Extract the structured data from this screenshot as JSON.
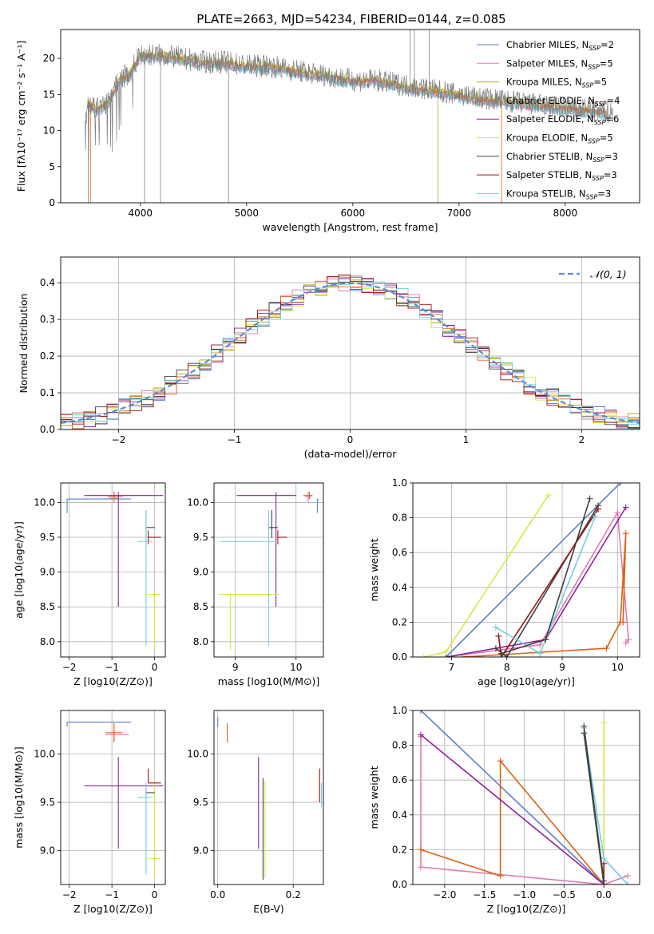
{
  "figure_title": "PLATE=2663, MJD=54234, FIBERID=0144, z=0.085",
  "colors": {
    "chabrier_miles": "#5b7fd0",
    "salpeter_miles": "#e07ab0",
    "kroupa_miles": "#b8a020",
    "chabrier_elodie": "#e06010",
    "salpeter_elodie": "#9020a0",
    "kroupa_elodie": "#d8e840",
    "chabrier_stelib": "#404040",
    "salpeter_stelib": "#a01010",
    "kroupa_stelib": "#70d0e0",
    "data": "#808080",
    "normal": "#5b8bd8"
  },
  "chart_data": [
    {
      "id": "spectrum",
      "type": "line",
      "xlabel": "wavelength [Angstrom, rest frame]",
      "ylabel": "Flux [fλ10⁻¹⁷ erg cm⁻² s⁻¹ A⁻¹]",
      "xlim": [
        3250,
        8700
      ],
      "ylim": [
        0,
        24
      ],
      "xticks": [
        4000,
        5000,
        6000,
        7000,
        8000
      ],
      "yticks": [
        0,
        5,
        10,
        15,
        20
      ],
      "legend_placement": "right",
      "legend": [
        "Chabrier MILES, N_SSP=2",
        "Salpeter MILES, N_SSP=5",
        "Kroupa MILES, N_SSP=5",
        "Chabrier ELODIE, N_SSP=4",
        "Salpeter ELODIE, N_SSP=6",
        "Kroupa ELODIE, N_SSP=5",
        "Chabrier STELIB, N_SSP=3",
        "Salpeter STELIB, N_SSP=3",
        "Kroupa STELIB, N_SSP=3"
      ],
      "continuum": {
        "x": [
          3500,
          3600,
          3700,
          3800,
          3900,
          4000,
          4200,
          4400,
          4600,
          4800,
          5000,
          5200,
          5400,
          5600,
          5800,
          6000,
          6200,
          6400,
          6600,
          6800,
          7000,
          7200,
          7400,
          7600,
          7800,
          8000,
          8200,
          8400
        ],
        "y": [
          14,
          13,
          14,
          17,
          18,
          20.5,
          20.5,
          20,
          19.5,
          19.5,
          19,
          19,
          18.5,
          18,
          17.5,
          17,
          17,
          16.5,
          16,
          15.5,
          15,
          14.5,
          14.2,
          13.8,
          13.5,
          13.2,
          12.9,
          12.6
        ]
      }
    },
    {
      "id": "residuals",
      "type": "histogram",
      "xlabel": "(data-model)/error",
      "ylabel": "Normed distribution",
      "xlim": [
        -2.5,
        2.5
      ],
      "ylim": [
        0,
        0.47
      ],
      "xticks": [
        -2,
        -1,
        0,
        1,
        2
      ],
      "yticks": [
        0.0,
        0.1,
        0.2,
        0.3,
        0.4
      ],
      "grid": true,
      "legend_placement": "top-right",
      "legend": [
        "𝒩(0, 1)"
      ],
      "bin_width": 0.1
    },
    {
      "id": "age_vs_Z",
      "type": "scatter",
      "xlabel": "Z [log10(Z/Z⊙)]",
      "ylabel": "age  [log10(age/yr)]",
      "xlim": [
        -2.2,
        0.25
      ],
      "ylim": [
        7.78,
        10.28
      ],
      "xticks": [
        -2,
        -1,
        0
      ],
      "yticks": [
        8.0,
        8.5,
        9.0,
        9.5,
        10.0
      ],
      "grid": true,
      "points": [
        {
          "color": "chabrier_miles",
          "x": -2.05,
          "y": 10.05,
          "x_err": [
            0,
            1.5
          ],
          "y_err": [
            0.2,
            0
          ]
        },
        {
          "color": "salpeter_miles",
          "x": -0.95,
          "y": 10.08,
          "x_err": [
            0.15,
            0.2
          ],
          "y_err": [
            0.08,
            0.08
          ]
        },
        {
          "color": "kroupa_miles",
          "x": -0.95,
          "y": 10.06,
          "x_err": [
            0.1,
            0.1
          ],
          "y_err": [
            0.05,
            0.05
          ]
        },
        {
          "color": "chabrier_elodie",
          "x": -0.95,
          "y": 10.1,
          "x_err": [
            0.15,
            0.15
          ],
          "y_err": [
            0.05,
            0.05
          ]
        },
        {
          "color": "salpeter_elodie",
          "x": -0.85,
          "y": 10.1,
          "x_err": [
            0.8,
            1.05
          ],
          "y_err": [
            1.6,
            0.05
          ]
        },
        {
          "color": "kroupa_elodie",
          "x": 0.0,
          "y": 8.68,
          "x_err": [
            0.15,
            0.15
          ],
          "y_err": [
            0.8,
            0.0
          ]
        },
        {
          "color": "chabrier_stelib",
          "x": -0.2,
          "y": 9.64,
          "x_err": [
            0.0,
            0.2
          ],
          "y_err": [
            0.15,
            0.25
          ]
        },
        {
          "color": "salpeter_stelib",
          "x": -0.15,
          "y": 9.5,
          "x_err": [
            0,
            0.3
          ],
          "y_err": [
            0.1,
            0.1
          ]
        },
        {
          "color": "kroupa_stelib",
          "x": -0.2,
          "y": 9.44,
          "x_err": [
            0.2,
            0.15
          ],
          "y_err": [
            1.5,
            0.45
          ]
        }
      ]
    },
    {
      "id": "age_vs_mass",
      "type": "scatter",
      "xlabel": "mass [log10(M/M⊙)]",
      "ylabel": "",
      "xlim": [
        8.65,
        10.45
      ],
      "ylim": [
        7.78,
        10.28
      ],
      "xticks": [
        9,
        10
      ],
      "yticks": [
        8.0,
        8.5,
        9.0,
        9.5,
        10.0
      ],
      "grid": true,
      "points": [
        {
          "color": "chabrier_miles",
          "x": 10.35,
          "y": 10.05,
          "x_err": [
            0,
            0.02
          ],
          "y_err": [
            0.2,
            0
          ]
        },
        {
          "color": "salpeter_miles",
          "x": 10.2,
          "y": 10.08,
          "x_err": [
            0.05,
            0.05
          ],
          "y_err": [
            0.08,
            0.08
          ]
        },
        {
          "color": "chabrier_elodie",
          "x": 10.22,
          "y": 10.1,
          "x_err": [
            0.1,
            0.05
          ],
          "y_err": [
            0.05,
            0.05
          ]
        },
        {
          "color": "salpeter_elodie",
          "x": 9.67,
          "y": 10.1,
          "x_err": [
            0.65,
            0.33
          ],
          "y_err": [
            1.6,
            0.05
          ]
        },
        {
          "color": "kroupa_elodie",
          "x": 8.92,
          "y": 8.68,
          "x_err": [
            0.2,
            0.8
          ],
          "y_err": [
            0.8,
            0
          ]
        },
        {
          "color": "chabrier_stelib",
          "x": 9.6,
          "y": 9.64,
          "x_err": [
            0.05,
            0.1
          ],
          "y_err": [
            0.15,
            0.25
          ]
        },
        {
          "color": "salpeter_stelib",
          "x": 9.7,
          "y": 9.5,
          "x_err": [
            0,
            0.15
          ],
          "y_err": [
            0.1,
            0.1
          ]
        },
        {
          "color": "kroupa_stelib",
          "x": 9.55,
          "y": 9.44,
          "x_err": [
            0.8,
            0.15
          ],
          "y_err": [
            1.5,
            0.45
          ]
        }
      ]
    },
    {
      "id": "weight_vs_age",
      "type": "line",
      "xlabel": "age  [log10(age/yr)]",
      "ylabel": "mass weight",
      "xlim": [
        6.3,
        10.4
      ],
      "ylim": [
        0,
        1
      ],
      "xticks": [
        7,
        8,
        9,
        10
      ],
      "yticks": [
        0.0,
        0.2,
        0.4,
        0.6,
        0.8,
        1.0
      ],
      "grid": true,
      "series": [
        {
          "color": "chabrier_miles",
          "x": [
            6.9,
            10.05
          ],
          "y": [
            0.0,
            1.0
          ]
        },
        {
          "color": "salpeter_miles",
          "x": [
            6.9,
            8.6,
            10.0,
            10.2,
            10.15
          ],
          "y": [
            0.0,
            0.07,
            0.83,
            0.1,
            0.08
          ]
        },
        {
          "color": "chabrier_elodie",
          "x": [
            7.2,
            9.8,
            10.05,
            10.15,
            10.1
          ],
          "y": [
            0.0,
            0.05,
            0.2,
            0.71,
            0.2
          ]
        },
        {
          "color": "salpeter_elodie",
          "x": [
            6.9,
            8.7,
            10.15
          ],
          "y": [
            0.0,
            0.1,
            0.86
          ]
        },
        {
          "color": "kroupa_elodie",
          "x": [
            6.5,
            6.9,
            8.75
          ],
          "y": [
            0.0,
            0.03,
            0.93
          ]
        },
        {
          "color": "chabrier_stelib",
          "x": [
            7.8,
            8.0,
            9.65
          ],
          "y": [
            0.05,
            0.0,
            0.87
          ]
        },
        {
          "color": "salpeter_stelib",
          "x": [
            7.85,
            7.9,
            9.65
          ],
          "y": [
            0.12,
            0.0,
            0.85
          ]
        },
        {
          "color": "kroupa_stelib",
          "x": [
            7.8,
            8.6,
            9.6
          ],
          "y": [
            0.17,
            0.02,
            0.81
          ]
        },
        {
          "color": "chabrier_stelib",
          "x": [
            7.9,
            8.7,
            9.5
          ],
          "y": [
            0.02,
            0.1,
            0.91
          ]
        }
      ]
    },
    {
      "id": "mass_vs_Z",
      "type": "scatter",
      "xlabel": "Z [log10(Z/Z⊙)]",
      "ylabel": "mass [log10(M/M⊙)]",
      "xlim": [
        -2.2,
        0.25
      ],
      "ylim": [
        8.65,
        10.45
      ],
      "xticks": [
        -2,
        -1,
        0
      ],
      "yticks": [
        9.0,
        9.5,
        10.0
      ],
      "grid": true,
      "points": [
        {
          "color": "chabrier_miles",
          "x": -2.05,
          "y": 10.33,
          "x_err": [
            0,
            1.5
          ],
          "y_err": [
            0.05,
            0
          ]
        },
        {
          "color": "salpeter_miles",
          "x": -0.95,
          "y": 10.2,
          "x_err": [
            0.2,
            0.35
          ],
          "y_err": [
            0.05,
            0.05
          ]
        },
        {
          "color": "chabrier_elodie",
          "x": -0.95,
          "y": 10.22,
          "x_err": [
            0.2,
            0.2
          ],
          "y_err": [
            0.1,
            0.1
          ]
        },
        {
          "color": "salpeter_elodie",
          "x": -0.85,
          "y": 9.67,
          "x_err": [
            0.8,
            1.05
          ],
          "y_err": [
            0.65,
            0.3
          ]
        },
        {
          "color": "kroupa_elodie",
          "x": 0.0,
          "y": 8.92,
          "x_err": [
            0.15,
            0.15
          ],
          "y_err": [
            0.2,
            0.8
          ]
        },
        {
          "color": "chabrier_stelib",
          "x": -0.2,
          "y": 9.6,
          "x_err": [
            0,
            0.2
          ],
          "y_err": [
            0.05,
            0.1
          ]
        },
        {
          "color": "salpeter_stelib",
          "x": -0.15,
          "y": 9.7,
          "x_err": [
            0,
            0.3
          ],
          "y_err": [
            0,
            0.15
          ]
        },
        {
          "color": "kroupa_stelib",
          "x": -0.2,
          "y": 9.55,
          "x_err": [
            0.2,
            0.15
          ],
          "y_err": [
            0.8,
            0.15
          ]
        }
      ]
    },
    {
      "id": "mass_vs_ebv",
      "type": "scatter",
      "xlabel": "E(B-V)",
      "ylabel": "",
      "xlim": [
        -0.01,
        0.28
      ],
      "ylim": [
        8.65,
        10.45
      ],
      "xticks": [
        0.0,
        0.2
      ],
      "yticks": [
        9.0,
        9.5,
        10.0
      ],
      "grid": true,
      "points": [
        {
          "color": "chabrier_miles",
          "x": 0.0,
          "y": 10.33,
          "y_err": [
            0.05,
            0.05
          ]
        },
        {
          "color": "chabrier_elodie",
          "x": 0.025,
          "y": 10.22,
          "y_err": [
            0.1,
            0.1
          ]
        },
        {
          "color": "salpeter_elodie",
          "x": 0.108,
          "y": 9.67,
          "y_err": [
            0.65,
            0.3
          ]
        },
        {
          "color": "kroupa_elodie",
          "x": 0.125,
          "y": 8.92,
          "y_err": [
            0.2,
            0.8
          ]
        },
        {
          "color": "chabrier_stelib",
          "x": 0.12,
          "y": 9.5,
          "y_err": [
            0.8,
            0.25
          ]
        },
        {
          "color": "salpeter_stelib",
          "x": 0.27,
          "y": 9.7,
          "y_err": [
            0.2,
            0.15
          ]
        },
        {
          "color": "kroupa_stelib",
          "x": 0.275,
          "y": 9.55,
          "y_err": [
            0.1,
            0.15
          ]
        }
      ]
    },
    {
      "id": "weight_vs_Z",
      "type": "line",
      "xlabel": "Z [log10(Z/Z⊙)]",
      "ylabel": "mass weight",
      "xlim": [
        -2.4,
        0.45
      ],
      "ylim": [
        0,
        1
      ],
      "xticks": [
        -2.0,
        -1.5,
        -1.0,
        -0.5,
        0.0
      ],
      "yticks": [
        0.0,
        0.2,
        0.4,
        0.6,
        0.8,
        1.0
      ],
      "grid": true,
      "series": [
        {
          "color": "chabrier_miles",
          "x": [
            -2.3,
            0.0
          ],
          "y": [
            1.0,
            0.0
          ]
        },
        {
          "color": "salpeter_miles",
          "x": [
            -2.3,
            -2.3,
            0.0,
            0.3
          ],
          "y": [
            0.85,
            0.1,
            0.0,
            0.05
          ]
        },
        {
          "color": "chabrier_elodie",
          "x": [
            -2.3,
            -1.3,
            -1.3,
            0.0
          ],
          "y": [
            0.2,
            0.05,
            0.71,
            0.0
          ]
        },
        {
          "color": "salpeter_elodie",
          "x": [
            -2.3,
            0.0
          ],
          "y": [
            0.86,
            0.0
          ]
        },
        {
          "color": "kroupa_elodie",
          "x": [
            0.0,
            0.0
          ],
          "y": [
            0.93,
            0.0
          ]
        },
        {
          "color": "chabrier_stelib",
          "x": [
            -0.25,
            0.0
          ],
          "y": [
            0.87,
            0.0
          ]
        },
        {
          "color": "salpeter_stelib",
          "x": [
            0.0,
            0.0
          ],
          "y": [
            0.12,
            0.0
          ]
        },
        {
          "color": "kroupa_stelib",
          "x": [
            -0.25,
            0.0,
            0.3
          ],
          "y": [
            0.9,
            0.15,
            0.0
          ]
        },
        {
          "color": "chabrier_stelib",
          "x": [
            -0.25,
            0.0
          ],
          "y": [
            0.91,
            0.02
          ]
        }
      ]
    }
  ]
}
